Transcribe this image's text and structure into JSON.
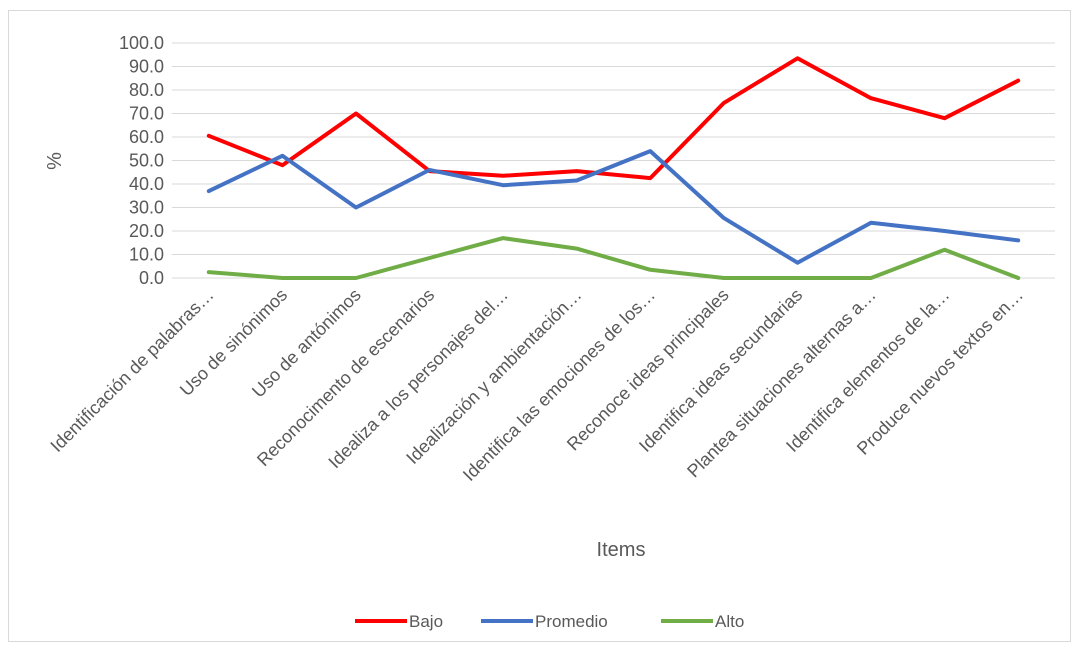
{
  "chart_data": {
    "type": "line",
    "title": "",
    "xlabel": "Items",
    "ylabel": "%",
    "ylim": [
      0,
      100
    ],
    "ytick_step": 10,
    "grid": true,
    "legend_position": "bottom",
    "categories": [
      "Identificación de palabras…",
      "Uso de sinónimos",
      "Uso de antónimos",
      "Reconocimento de escenarios",
      "Idealiza a los personajes del…",
      "Idealización y ambientación…",
      "Identifica las emociones de los…",
      "Reconoce ideas principales",
      "Identifica ideas secundarias",
      "Plantea situaciones alternas a…",
      "Identifica elementos de la…",
      "Produce nuevos textos en…"
    ],
    "series": [
      {
        "name": "Bajo",
        "color": "#ff0000",
        "values": [
          60.5,
          48.0,
          70.0,
          45.5,
          43.5,
          45.5,
          42.5,
          74.5,
          93.5,
          76.5,
          68.0,
          84.0
        ]
      },
      {
        "name": "Promedio",
        "color": "#4472c4",
        "values": [
          37.0,
          52.0,
          30.0,
          46.0,
          39.5,
          41.5,
          54.0,
          25.5,
          6.5,
          23.5,
          20.0,
          16.0
        ]
      },
      {
        "name": "Alto",
        "color": "#70ad47",
        "values": [
          2.5,
          0.0,
          0.0,
          8.5,
          17.0,
          12.5,
          3.5,
          0.0,
          0.0,
          0.0,
          12.0,
          0.0
        ]
      }
    ]
  }
}
